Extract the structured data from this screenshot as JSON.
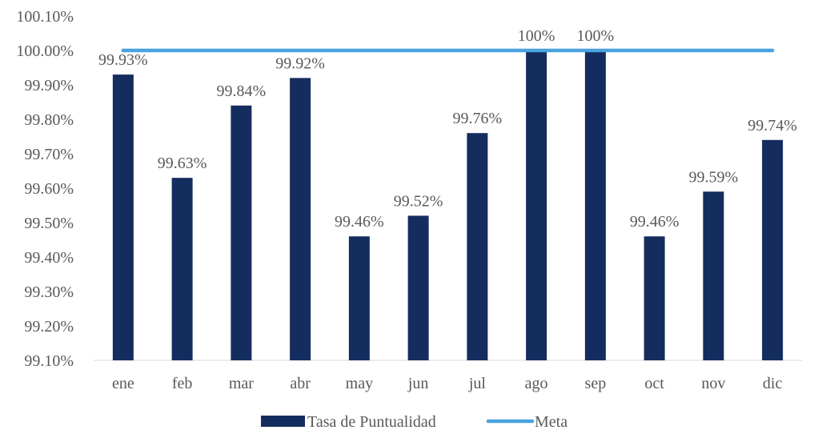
{
  "chart_data": {
    "type": "bar",
    "categories": [
      "ene",
      "feb",
      "mar",
      "abr",
      "may",
      "jun",
      "jul",
      "ago",
      "sep",
      "oct",
      "nov",
      "dic"
    ],
    "series": [
      {
        "name": "Tasa de Puntualidad",
        "type": "bar",
        "color": "#142d5e",
        "values": [
          99.93,
          99.63,
          99.84,
          99.92,
          99.46,
          99.52,
          99.76,
          100.0,
          100.0,
          99.46,
          99.59,
          99.74
        ],
        "labels": [
          "99.93%",
          "99.63%",
          "99.84%",
          "99.92%",
          "99.46%",
          "99.52%",
          "99.76%",
          "100%",
          "100%",
          "99.46%",
          "99.59%",
          "99.74%"
        ]
      },
      {
        "name": "Meta",
        "type": "line",
        "color": "#4aa3df",
        "values": [
          100,
          100,
          100,
          100,
          100,
          100,
          100,
          100,
          100,
          100,
          100,
          100
        ]
      }
    ],
    "yticks": [
      "99.10%",
      "99.20%",
      "99.30%",
      "99.40%",
      "99.50%",
      "99.60%",
      "99.70%",
      "99.80%",
      "99.90%",
      "100.00%",
      "100.10%"
    ],
    "ylim": [
      99.1,
      100.1
    ],
    "legend_position": "bottom",
    "grid": false
  }
}
